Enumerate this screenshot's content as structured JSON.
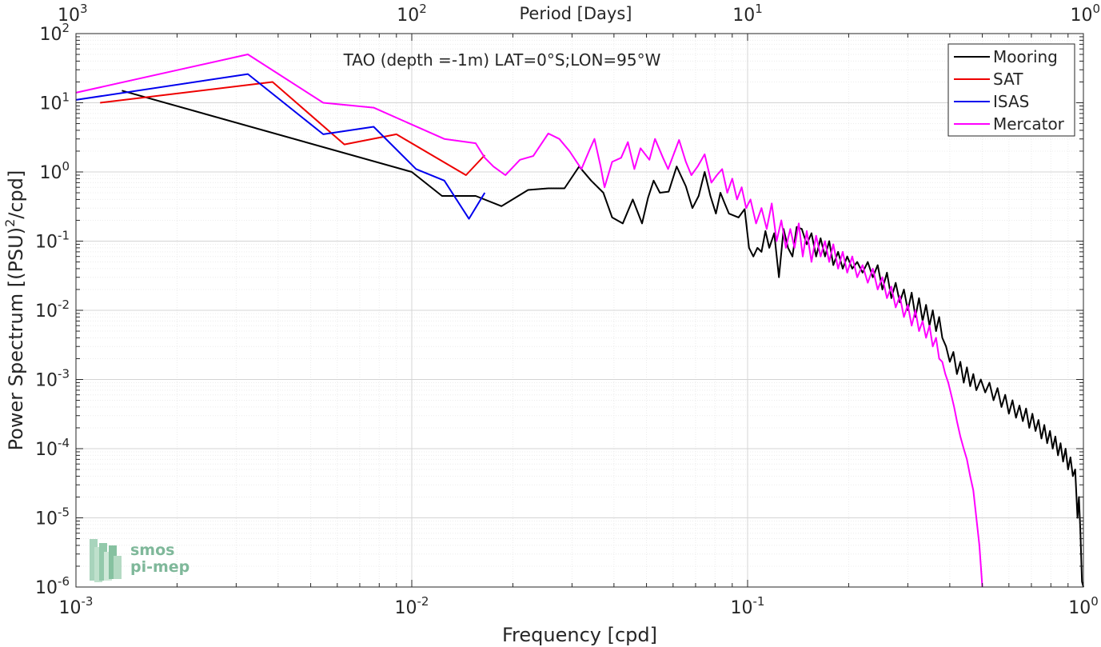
{
  "chart_data": {
    "type": "line",
    "title": "TAO (depth =-1m) LAT=0°S;LON=95°W",
    "xlabel": "Frequency [cpd]",
    "ylabel_main": "Power Spectrum [(PSU)",
    "ylabel_sup": "2",
    "ylabel_tail": "/cpd]",
    "top_axis_label": "Period [Days]",
    "xscale": "log",
    "yscale": "log",
    "xlim": [
      0.001,
      1
    ],
    "ylim": [
      1e-06,
      100
    ],
    "grid": true,
    "legend_position": "top-right",
    "x_ticks": [
      {
        "value": 0.001,
        "base": "10",
        "exp": "-3"
      },
      {
        "value": 0.01,
        "base": "10",
        "exp": "-2"
      },
      {
        "value": 0.1,
        "base": "10",
        "exp": "-1"
      },
      {
        "value": 1,
        "base": "10",
        "exp": "0"
      }
    ],
    "y_ticks": [
      {
        "value": 100,
        "base": "10",
        "exp": "2"
      },
      {
        "value": 10,
        "base": "10",
        "exp": "1"
      },
      {
        "value": 1,
        "base": "10",
        "exp": "0"
      },
      {
        "value": 0.1,
        "base": "10",
        "exp": "-1"
      },
      {
        "value": 0.01,
        "base": "10",
        "exp": "-2"
      },
      {
        "value": 0.001,
        "base": "10",
        "exp": "-3"
      },
      {
        "value": 0.0001,
        "base": "10",
        "exp": "-4"
      },
      {
        "value": 1e-05,
        "base": "10",
        "exp": "-5"
      },
      {
        "value": 1e-06,
        "base": "10",
        "exp": "-6"
      }
    ],
    "top_ticks": [
      {
        "value": 0.001,
        "base": "10",
        "exp": "3"
      },
      {
        "value": 0.01,
        "base": "10",
        "exp": "2"
      },
      {
        "value": 0.1,
        "base": "10",
        "exp": "1"
      },
      {
        "value": 1,
        "base": "10",
        "exp": "0"
      }
    ],
    "series": [
      {
        "name": "Mooring",
        "color": "#000000",
        "points": [
          [
            0.00137,
            15
          ],
          [
            0.01,
            1.0
          ],
          [
            0.0123,
            0.45
          ],
          [
            0.0155,
            0.45
          ],
          [
            0.0185,
            0.32
          ],
          [
            0.0222,
            0.55
          ],
          [
            0.0255,
            0.58
          ],
          [
            0.0285,
            0.58
          ],
          [
            0.0315,
            1.2
          ],
          [
            0.0342,
            0.75
          ],
          [
            0.0372,
            0.5
          ],
          [
            0.0395,
            0.22
          ],
          [
            0.0425,
            0.18
          ],
          [
            0.0455,
            0.4
          ],
          [
            0.0485,
            0.18
          ],
          [
            0.0505,
            0.42
          ],
          [
            0.0525,
            0.75
          ],
          [
            0.0548,
            0.5
          ],
          [
            0.0582,
            0.52
          ],
          [
            0.0615,
            1.2
          ],
          [
            0.0655,
            0.62
          ],
          [
            0.0685,
            0.3
          ],
          [
            0.0715,
            0.45
          ],
          [
            0.0745,
            1.0
          ],
          [
            0.0775,
            0.45
          ],
          [
            0.0805,
            0.25
          ],
          [
            0.083,
            0.5
          ],
          [
            0.0855,
            0.35
          ],
          [
            0.088,
            0.25
          ],
          [
            0.094,
            0.22
          ],
          [
            0.098,
            0.29
          ],
          [
            0.101,
            0.08
          ],
          [
            0.104,
            0.06
          ],
          [
            0.107,
            0.08
          ],
          [
            0.11,
            0.07
          ],
          [
            0.113,
            0.14
          ],
          [
            0.116,
            0.08
          ],
          [
            0.12,
            0.13
          ],
          [
            0.124,
            0.03
          ],
          [
            0.128,
            0.15
          ],
          [
            0.132,
            0.08
          ],
          [
            0.136,
            0.06
          ],
          [
            0.14,
            0.16
          ],
          [
            0.145,
            0.15
          ],
          [
            0.15,
            0.09
          ],
          [
            0.155,
            0.13
          ],
          [
            0.16,
            0.06
          ],
          [
            0.165,
            0.11
          ],
          [
            0.17,
            0.06
          ],
          [
            0.175,
            0.1
          ],
          [
            0.18,
            0.045
          ],
          [
            0.186,
            0.07
          ],
          [
            0.192,
            0.04
          ],
          [
            0.198,
            0.06
          ],
          [
            0.205,
            0.04
          ],
          [
            0.212,
            0.05
          ],
          [
            0.22,
            0.035
          ],
          [
            0.228,
            0.05
          ],
          [
            0.236,
            0.03
          ],
          [
            0.244,
            0.045
          ],
          [
            0.252,
            0.02
          ],
          [
            0.26,
            0.035
          ],
          [
            0.268,
            0.015
          ],
          [
            0.276,
            0.025
          ],
          [
            0.284,
            0.013
          ],
          [
            0.292,
            0.02
          ],
          [
            0.3,
            0.01
          ],
          [
            0.308,
            0.018
          ],
          [
            0.316,
            0.008
          ],
          [
            0.324,
            0.015
          ],
          [
            0.332,
            0.007
          ],
          [
            0.34,
            0.012
          ],
          [
            0.348,
            0.006
          ],
          [
            0.356,
            0.01
          ],
          [
            0.364,
            0.005
          ],
          [
            0.372,
            0.008
          ],
          [
            0.38,
            0.004
          ],
          [
            0.39,
            0.003
          ],
          [
            0.4,
            0.0018
          ],
          [
            0.41,
            0.0025
          ],
          [
            0.42,
            0.0012
          ],
          [
            0.43,
            0.0018
          ],
          [
            0.44,
            0.0009
          ],
          [
            0.45,
            0.0015
          ],
          [
            0.46,
            0.0008
          ],
          [
            0.47,
            0.0012
          ],
          [
            0.48,
            0.0007
          ],
          [
            0.495,
            0.001
          ],
          [
            0.51,
            0.00065
          ],
          [
            0.525,
            0.0009
          ],
          [
            0.54,
            0.0005
          ],
          [
            0.555,
            0.00075
          ],
          [
            0.57,
            0.0004
          ],
          [
            0.585,
            0.0006
          ],
          [
            0.6,
            0.00032
          ],
          [
            0.615,
            0.0005
          ],
          [
            0.63,
            0.00028
          ],
          [
            0.645,
            0.00042
          ],
          [
            0.66,
            0.00025
          ],
          [
            0.675,
            0.00038
          ],
          [
            0.69,
            0.0002
          ],
          [
            0.705,
            0.00032
          ],
          [
            0.72,
            0.00018
          ],
          [
            0.735,
            0.00026
          ],
          [
            0.75,
            0.00014
          ],
          [
            0.765,
            0.00022
          ],
          [
            0.78,
            0.00012
          ],
          [
            0.795,
            0.00018
          ],
          [
            0.81,
            0.0001
          ],
          [
            0.825,
            0.00015
          ],
          [
            0.84,
            8e-05
          ],
          [
            0.855,
            0.00012
          ],
          [
            0.87,
            6.5e-05
          ],
          [
            0.885,
            0.0001
          ],
          [
            0.9,
            5e-05
          ],
          [
            0.915,
            7.5e-05
          ],
          [
            0.93,
            4e-05
          ],
          [
            0.945,
            5e-05
          ],
          [
            0.96,
            1e-05
          ],
          [
            0.97,
            2e-05
          ],
          [
            0.98,
            6e-06
          ],
          [
            0.99,
            1.2e-06
          ],
          [
            1.0,
            1e-06
          ]
        ]
      },
      {
        "name": "SAT",
        "color": "#ee0000",
        "points": [
          [
            0.00118,
            10
          ],
          [
            0.00385,
            20
          ],
          [
            0.0063,
            2.5
          ],
          [
            0.009,
            3.5
          ],
          [
            0.0145,
            0.9
          ],
          [
            0.0165,
            1.75
          ]
        ]
      },
      {
        "name": "ISAS",
        "color": "#0000ee",
        "points": [
          [
            0.001,
            11
          ],
          [
            0.00325,
            26
          ],
          [
            0.00545,
            3.5
          ],
          [
            0.0077,
            4.5
          ],
          [
            0.0103,
            1.1
          ],
          [
            0.0125,
            0.75
          ],
          [
            0.0148,
            0.21
          ],
          [
            0.0165,
            0.5
          ]
        ]
      },
      {
        "name": "Mercator",
        "color": "#ff00ff",
        "points": [
          [
            0.001,
            14
          ],
          [
            0.00325,
            50
          ],
          [
            0.00545,
            10
          ],
          [
            0.0077,
            8.5
          ],
          [
            0.0125,
            3.0
          ],
          [
            0.0155,
            2.6
          ],
          [
            0.0165,
            1.6
          ],
          [
            0.0175,
            1.2
          ],
          [
            0.019,
            0.9
          ],
          [
            0.021,
            1.5
          ],
          [
            0.023,
            1.7
          ],
          [
            0.0255,
            3.6
          ],
          [
            0.0275,
            3.0
          ],
          [
            0.0295,
            2.0
          ],
          [
            0.032,
            1.1
          ],
          [
            0.034,
            2.2
          ],
          [
            0.035,
            3.0
          ],
          [
            0.0365,
            1.2
          ],
          [
            0.0375,
            0.6
          ],
          [
            0.0395,
            1.4
          ],
          [
            0.042,
            1.6
          ],
          [
            0.044,
            2.7
          ],
          [
            0.046,
            1.1
          ],
          [
            0.048,
            2.2
          ],
          [
            0.051,
            1.5
          ],
          [
            0.053,
            3.0
          ],
          [
            0.056,
            1.6
          ],
          [
            0.058,
            1.1
          ],
          [
            0.0625,
            2.9
          ],
          [
            0.0655,
            1.4
          ],
          [
            0.068,
            0.9
          ],
          [
            0.071,
            1.2
          ],
          [
            0.0745,
            1.8
          ],
          [
            0.078,
            0.7
          ],
          [
            0.081,
            0.9
          ],
          [
            0.084,
            1.1
          ],
          [
            0.087,
            0.5
          ],
          [
            0.09,
            0.8
          ],
          [
            0.093,
            0.4
          ],
          [
            0.096,
            0.6
          ],
          [
            0.099,
            0.3
          ],
          [
            0.102,
            0.4
          ],
          [
            0.106,
            0.18
          ],
          [
            0.11,
            0.3
          ],
          [
            0.114,
            0.15
          ],
          [
            0.118,
            0.35
          ],
          [
            0.122,
            0.1
          ],
          [
            0.126,
            0.2
          ],
          [
            0.13,
            0.08
          ],
          [
            0.134,
            0.15
          ],
          [
            0.138,
            0.08
          ],
          [
            0.142,
            0.18
          ],
          [
            0.146,
            0.06
          ],
          [
            0.15,
            0.14
          ],
          [
            0.155,
            0.05
          ],
          [
            0.16,
            0.12
          ],
          [
            0.165,
            0.06
          ],
          [
            0.17,
            0.1
          ],
          [
            0.175,
            0.05
          ],
          [
            0.18,
            0.09
          ],
          [
            0.186,
            0.04
          ],
          [
            0.192,
            0.07
          ],
          [
            0.198,
            0.035
          ],
          [
            0.205,
            0.06
          ],
          [
            0.212,
            0.03
          ],
          [
            0.22,
            0.045
          ],
          [
            0.228,
            0.025
          ],
          [
            0.236,
            0.04
          ],
          [
            0.244,
            0.02
          ],
          [
            0.252,
            0.03
          ],
          [
            0.26,
            0.015
          ],
          [
            0.268,
            0.022
          ],
          [
            0.276,
            0.011
          ],
          [
            0.284,
            0.016
          ],
          [
            0.292,
            0.008
          ],
          [
            0.3,
            0.012
          ],
          [
            0.308,
            0.006
          ],
          [
            0.316,
            0.01
          ],
          [
            0.324,
            0.005
          ],
          [
            0.332,
            0.007
          ],
          [
            0.34,
            0.004
          ],
          [
            0.348,
            0.006
          ],
          [
            0.356,
            0.003
          ],
          [
            0.364,
            0.004
          ],
          [
            0.372,
            0.002
          ],
          [
            0.38,
            0.0018
          ],
          [
            0.388,
            0.0012
          ],
          [
            0.396,
            0.0009
          ],
          [
            0.404,
            0.0006
          ],
          [
            0.412,
            0.0004
          ],
          [
            0.42,
            0.00025
          ],
          [
            0.43,
            0.00015
          ],
          [
            0.44,
            0.0001
          ],
          [
            0.45,
            7e-05
          ],
          [
            0.46,
            4e-05
          ],
          [
            0.47,
            2.5e-05
          ],
          [
            0.48,
            1e-05
          ],
          [
            0.49,
            4e-06
          ],
          [
            0.5,
            1e-06
          ]
        ]
      }
    ]
  },
  "logo": {
    "line1": "smos",
    "line2": "pi-mep",
    "color": "#7fb89a"
  }
}
